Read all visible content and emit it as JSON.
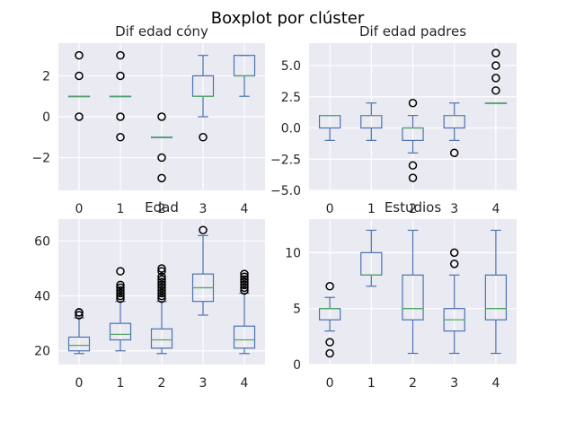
{
  "figure": {
    "title": "Boxplot por clúster"
  },
  "colors": {
    "plot_bg": "#eaeaf2",
    "grid": "#ffffff",
    "box": "#4c72b0",
    "median": "#55a868",
    "flier": "#000000",
    "text": "#262626"
  },
  "chart_data": [
    {
      "type": "box",
      "title": "Dif edad cóny",
      "categories": [
        "0",
        "1",
        "2",
        "3",
        "4"
      ],
      "ylim": [
        -3.6,
        3.6
      ],
      "yticks": [
        -2,
        0,
        2
      ],
      "ytick_labels": [
        "−2",
        "0",
        "2"
      ],
      "grid": true,
      "boxes": [
        {
          "q1": 1,
          "median": 1,
          "q3": 1,
          "whislo": 1,
          "whishi": 1,
          "fliers": [
            3,
            2,
            0
          ]
        },
        {
          "q1": 1,
          "median": 1,
          "q3": 1,
          "whislo": 1,
          "whishi": 1,
          "fliers": [
            3,
            2,
            0,
            -1
          ]
        },
        {
          "q1": -1,
          "median": -1,
          "q3": -1,
          "whislo": -1,
          "whishi": -1,
          "fliers": [
            0,
            -2,
            -3
          ]
        },
        {
          "q1": 1,
          "median": 1,
          "q3": 2,
          "whislo": 0,
          "whishi": 3,
          "fliers": [
            -1
          ]
        },
        {
          "q1": 2,
          "median": 2,
          "q3": 3,
          "whislo": 1,
          "whishi": 3,
          "fliers": []
        }
      ]
    },
    {
      "type": "box",
      "title": "Dif edad padres",
      "categories": [
        "0",
        "1",
        "2",
        "3",
        "4"
      ],
      "ylim": [
        -5.0,
        6.8
      ],
      "yticks": [
        -5.0,
        -2.5,
        0.0,
        2.5,
        5.0
      ],
      "ytick_labels": [
        "−5.0",
        "−2.5",
        "0.0",
        "2.5",
        "5.0"
      ],
      "grid": true,
      "boxes": [
        {
          "q1": 0,
          "median": 1,
          "q3": 1,
          "whislo": -1,
          "whishi": 1,
          "fliers": []
        },
        {
          "q1": 0,
          "median": 1,
          "q3": 1,
          "whislo": -1,
          "whishi": 2,
          "fliers": []
        },
        {
          "q1": -1,
          "median": 0,
          "q3": 0,
          "whislo": -2,
          "whishi": 1,
          "fliers": [
            2,
            -3,
            -4
          ]
        },
        {
          "q1": 0,
          "median": 1,
          "q3": 1,
          "whislo": -1,
          "whishi": 2,
          "fliers": [
            -2
          ]
        },
        {
          "q1": 2,
          "median": 2,
          "q3": 2,
          "whislo": 2,
          "whishi": 2,
          "fliers": [
            6,
            5,
            4,
            3
          ]
        }
      ]
    },
    {
      "type": "box",
      "title": "Edad",
      "categories": [
        "0",
        "1",
        "2",
        "3",
        "4"
      ],
      "ylim": [
        15,
        68
      ],
      "yticks": [
        20,
        40,
        60
      ],
      "ytick_labels": [
        "20",
        "40",
        "60"
      ],
      "grid": true,
      "boxes": [
        {
          "q1": 20,
          "median": 22,
          "q3": 25,
          "whislo": 19,
          "whishi": 32,
          "fliers": [
            33,
            34,
            34
          ]
        },
        {
          "q1": 24,
          "median": 26,
          "q3": 30,
          "whislo": 20,
          "whishi": 38,
          "fliers": [
            39,
            40,
            41,
            42,
            43,
            44,
            49
          ]
        },
        {
          "q1": 21,
          "median": 24,
          "q3": 28,
          "whislo": 19,
          "whishi": 38,
          "fliers": [
            39,
            40,
            41,
            42,
            43,
            44,
            45,
            46,
            47,
            49,
            50
          ]
        },
        {
          "q1": 38,
          "median": 43,
          "q3": 48,
          "whislo": 33,
          "whishi": 62,
          "fliers": [
            64
          ]
        },
        {
          "q1": 21,
          "median": 24,
          "q3": 29,
          "whislo": 19,
          "whishi": 41,
          "fliers": [
            42,
            43,
            44,
            45,
            46,
            47,
            48
          ]
        }
      ]
    },
    {
      "type": "box",
      "title": "Estudios",
      "categories": [
        "0",
        "1",
        "2",
        "3",
        "4"
      ],
      "ylim": [
        0,
        13
      ],
      "yticks": [
        0,
        5,
        10
      ],
      "ytick_labels": [
        "0",
        "5",
        "10"
      ],
      "grid": true,
      "boxes": [
        {
          "q1": 4,
          "median": 5,
          "q3": 5,
          "whislo": 3,
          "whishi": 6,
          "fliers": [
            7,
            2,
            1
          ]
        },
        {
          "q1": 8,
          "median": 8,
          "q3": 10,
          "whislo": 7,
          "whishi": 12,
          "fliers": []
        },
        {
          "q1": 4,
          "median": 5,
          "q3": 8,
          "whislo": 1,
          "whishi": 12,
          "fliers": []
        },
        {
          "q1": 3,
          "median": 4,
          "q3": 5,
          "whislo": 1,
          "whishi": 8,
          "fliers": [
            9,
            10
          ]
        },
        {
          "q1": 4,
          "median": 5,
          "q3": 8,
          "whislo": 1,
          "whishi": 12,
          "fliers": []
        }
      ]
    }
  ]
}
